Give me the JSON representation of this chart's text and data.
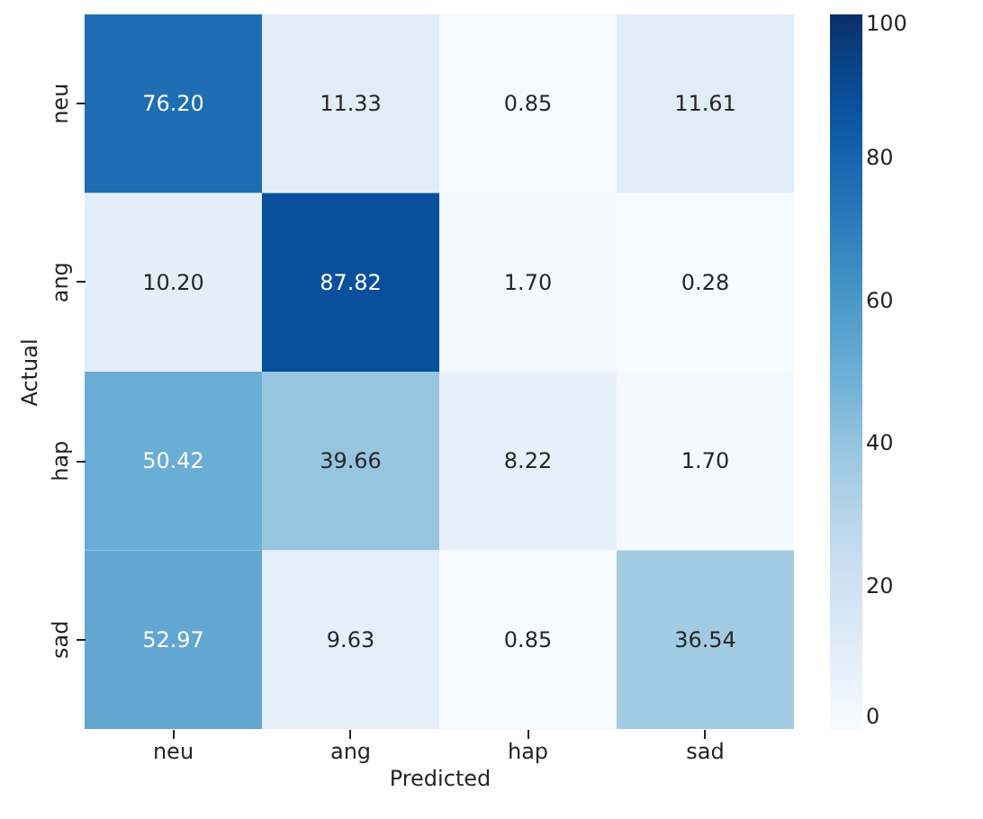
{
  "chart_data": {
    "type": "heatmap",
    "xlabel": "Predicted",
    "ylabel": "Actual",
    "categories": [
      "neu",
      "ang",
      "hap",
      "sad"
    ],
    "y_categories": [
      "neu",
      "ang",
      "hap",
      "sad"
    ],
    "cells": [
      [
        76.2,
        11.33,
        0.85,
        11.61
      ],
      [
        10.2,
        87.82,
        1.7,
        0.28
      ],
      [
        50.42,
        39.66,
        8.22,
        1.7
      ],
      [
        52.97,
        9.63,
        0.85,
        36.54
      ]
    ],
    "cell_labels": [
      [
        "76.20",
        "11.33",
        "0.85",
        "11.61"
      ],
      [
        "10.20",
        "87.82",
        "1.70",
        "0.28"
      ],
      [
        "50.42",
        "39.66",
        "8.22",
        "1.70"
      ],
      [
        "52.97",
        "9.63",
        "0.85",
        "36.54"
      ]
    ],
    "clim": [
      0,
      100
    ],
    "cticks": [
      0,
      20,
      40,
      60,
      80,
      100
    ]
  }
}
